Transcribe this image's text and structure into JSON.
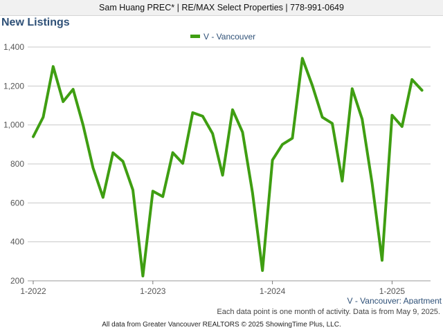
{
  "header": {
    "agent_line": "Sam Huang PREC* | RE/MAX Select Properties | 778-991-0649"
  },
  "page_title": "New Listings",
  "colors": {
    "series": "#3f9e12",
    "grid": "#c8c8c8",
    "text": "#2e5077"
  },
  "chart_data": {
    "type": "line",
    "title": "New Listings",
    "subtitle": "V - Vancouver: Apartment",
    "xlabel": "",
    "ylabel": "",
    "ylim": [
      200,
      1400
    ],
    "yticks": [
      200,
      400,
      600,
      800,
      1000,
      1200,
      1400
    ],
    "ytick_labels": [
      "200",
      "400",
      "600",
      "800",
      "1,000",
      "1,200",
      "1,400"
    ],
    "xticks": [
      "1-2022",
      "1-2023",
      "1-2024",
      "1-2025"
    ],
    "grid": true,
    "legend_position": "top-center",
    "series": [
      {
        "name": "V - Vancouver",
        "x": [
          "2022-01",
          "2022-02",
          "2022-03",
          "2022-04",
          "2022-05",
          "2022-06",
          "2022-07",
          "2022-08",
          "2022-09",
          "2022-10",
          "2022-11",
          "2022-12",
          "2023-01",
          "2023-02",
          "2023-03",
          "2023-04",
          "2023-05",
          "2023-06",
          "2023-07",
          "2023-08",
          "2023-09",
          "2023-10",
          "2023-11",
          "2023-12",
          "2024-01",
          "2024-02",
          "2024-03",
          "2024-04",
          "2024-05",
          "2024-06",
          "2024-07",
          "2024-08",
          "2024-09",
          "2024-10",
          "2024-11",
          "2024-12",
          "2025-01",
          "2025-02",
          "2025-03",
          "2025-04"
        ],
        "values": [
          940,
          1040,
          1300,
          1120,
          1183,
          1000,
          780,
          628,
          857,
          813,
          666,
          225,
          660,
          632,
          858,
          803,
          1063,
          1045,
          955,
          742,
          1078,
          963,
          652,
          253,
          820,
          900,
          932,
          1342,
          1203,
          1040,
          1008,
          712,
          1186,
          1030,
          700,
          305,
          1050,
          992,
          1233,
          1178
        ]
      }
    ]
  },
  "notes": {
    "data_note": "Each data point is one month of activity. Data is from May 9, 2025.",
    "footer": "All data from Greater Vancouver REALTORS © 2025 ShowingTime Plus, LLC."
  }
}
